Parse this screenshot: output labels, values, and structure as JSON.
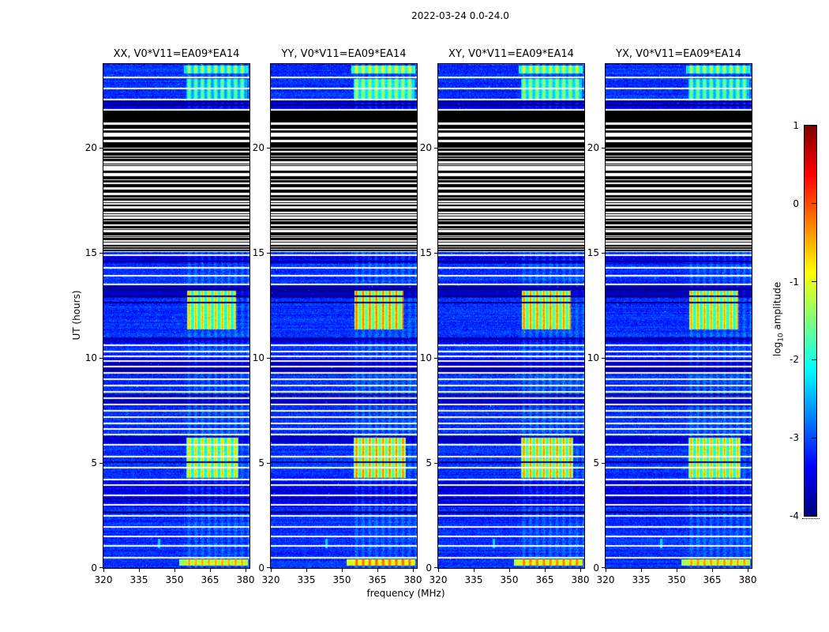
{
  "figure": {
    "title": "2022-03-24 0.0-24.0",
    "xlabel": "frequency (MHz)",
    "ylabel": "UT (hours)"
  },
  "chart_data": {
    "type": "heatmap",
    "title": "2022-03-24 0.0-24.0",
    "xlabel": "frequency (MHz)",
    "ylabel": "UT (hours)",
    "x_range_mhz": [
      320,
      382
    ],
    "y_range_hours": [
      0,
      24
    ],
    "x_ticks": [
      "320",
      "335",
      "350",
      "365",
      "380"
    ],
    "x_tick_values": [
      320,
      335,
      350,
      365,
      380
    ],
    "y_ticks": [
      "0",
      "5",
      "10",
      "15",
      "20"
    ],
    "y_tick_values": [
      0,
      5,
      10,
      15,
      20
    ],
    "panels": [
      {
        "id": "XX",
        "title": "XX, V0*V11=EA09*EA14"
      },
      {
        "id": "YY",
        "title": "YY, V0*V11=EA09*EA14"
      },
      {
        "id": "XY",
        "title": "XY, V0*V11=EA09*EA14"
      },
      {
        "id": "YX",
        "title": "YX, V0*V11=EA09*EA14"
      }
    ],
    "colorbar": {
      "label_pre": "log",
      "label_sub": "10",
      "label_post": " amplitude",
      "tick_labels": [
        "1",
        "0",
        "-1",
        "-2",
        "-3",
        "-4"
      ],
      "tick_values": [
        1,
        0,
        -1,
        -2,
        -3,
        -4
      ],
      "range": [
        -4,
        1
      ],
      "colormap": "jet"
    },
    "features": {
      "noise": {
        "base": -3.15,
        "row_jitter": 0.14,
        "pixel_jitter": 0.55,
        "speckle_prob": 0.0012,
        "speckle_boost": 1.1
      },
      "stripe_band": {
        "f0": 354,
        "f1": 381.5,
        "center": 356.2,
        "period_mhz": 2.8,
        "boost": 0.32
      },
      "stripe_regions": [
        [
          0,
          15.1
        ],
        [
          21.8,
          24
        ]
      ],
      "shade_bands": [
        {
          "t": [
            2.9,
            4.15
          ],
          "dv": -0.35
        },
        {
          "t": [
            5.95,
            6.3
          ],
          "dv": -0.5
        },
        {
          "t": [
            7.7,
            8.15
          ],
          "dv": -0.45
        },
        {
          "t": [
            9.25,
            9.95
          ],
          "dv": -0.5
        },
        {
          "t": [
            10.7,
            11.0
          ],
          "dv": -0.35
        },
        {
          "t": [
            12.85,
            13.45
          ],
          "dv": -0.55
        },
        {
          "t": [
            14.5,
            14.85
          ],
          "dv": -0.3
        },
        {
          "t": [
            21.85,
            22.3
          ],
          "dv": -0.4
        }
      ],
      "white_lines": [
        0.5,
        1.05,
        1.5,
        1.95,
        2.5,
        3.0,
        3.45,
        3.95,
        4.2,
        4.78,
        5.32,
        5.86,
        6.35,
        6.62,
        6.9,
        7.18,
        7.48,
        7.78,
        8.08,
        8.38,
        8.68,
        8.98,
        9.28,
        9.6,
        9.85,
        10.08,
        10.3,
        10.62,
        13.52,
        13.92,
        14.28,
        14.88,
        15.08,
        21.16,
        21.82,
        22.32,
        22.85,
        23.35
      ],
      "dark_lines": [
        2.65,
        3.3,
        5.05,
        8.25,
        9.45,
        10.9,
        12.65,
        12.95,
        13.3,
        14.6,
        22.05,
        22.18
      ],
      "black_bands": [
        [
          21.22,
          21.78
        ]
      ],
      "bw_region": {
        "t": [
          15.12,
          21.12
        ]
      },
      "patches": [
        {
          "t": [
            0.12,
            0.42
          ],
          "f": [
            352,
            381
          ],
          "v": -0.9,
          "amp": 0.5
        },
        {
          "t": [
            4.3,
            6.2
          ],
          "f": [
            355,
            377
          ],
          "v": -1.35,
          "amp": 0.8
        },
        {
          "t": [
            11.35,
            13.2
          ],
          "f": [
            355.5,
            376
          ],
          "v": -1.3,
          "amp": 0.8
        },
        {
          "t": [
            22.35,
            23.3
          ],
          "f": [
            355,
            380.5
          ],
          "v": -2.05,
          "amp": 0.55
        },
        {
          "t": [
            23.55,
            23.92
          ],
          "f": [
            354,
            381
          ],
          "v": -1.75,
          "amp": 0.6
        }
      ],
      "panel_patch_boost": [
        0,
        0.3,
        0.22,
        0.08
      ],
      "marks": [
        {
          "f": 343.5,
          "t": [
            0.95,
            1.4
          ],
          "v": -2.3
        }
      ]
    }
  }
}
